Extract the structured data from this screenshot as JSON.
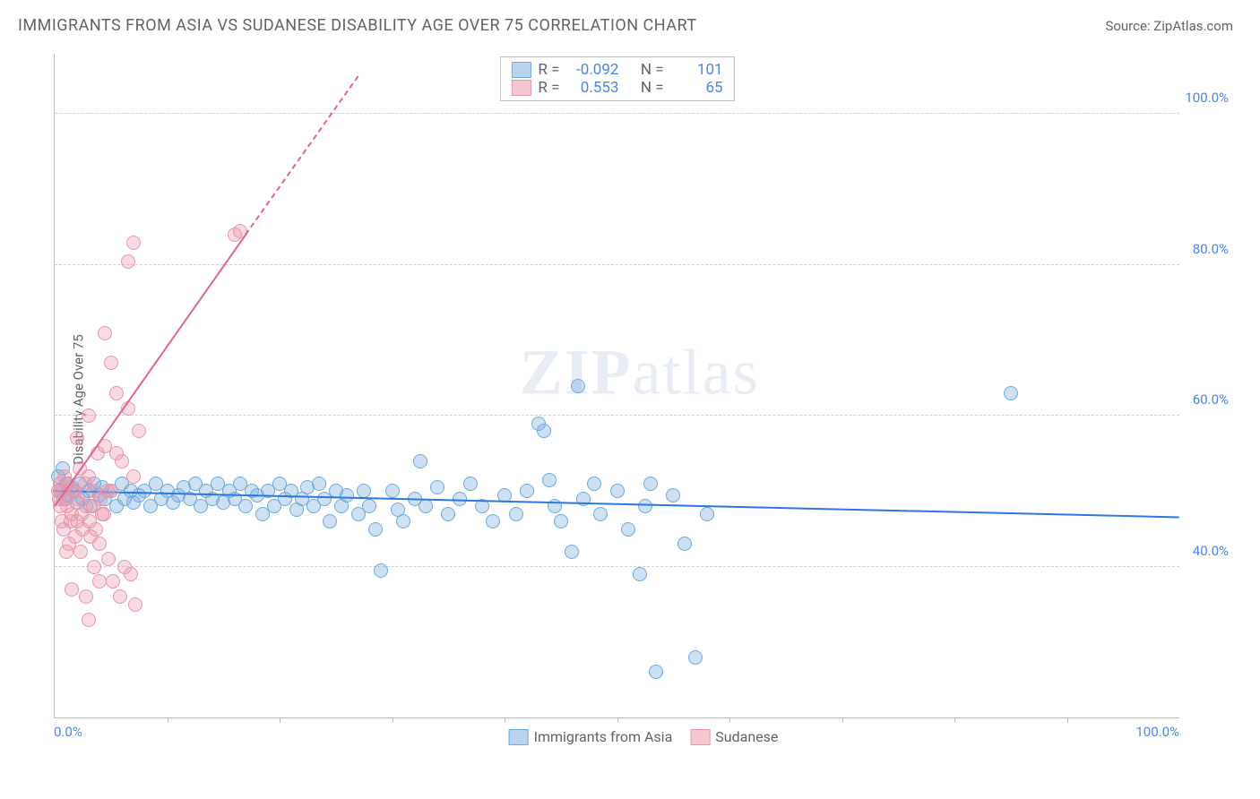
{
  "title": "IMMIGRANTS FROM ASIA VS SUDANESE DISABILITY AGE OVER 75 CORRELATION CHART",
  "source_label": "Source:",
  "source_name": "ZipAtlas.com",
  "watermark": {
    "part1": "ZIP",
    "part2": "atlas"
  },
  "chart": {
    "type": "scatter",
    "background_color": "#ffffff",
    "grid_color": "#d0d0d0",
    "axis_color": "#bdbdbd",
    "text_color": "#5f6368",
    "value_color": "#4a86e8",
    "ylabel": "Disability Age Over 75",
    "xlim": [
      0,
      100
    ],
    "ylim": [
      20,
      108
    ],
    "ytick_values": [
      40,
      60,
      80,
      100
    ],
    "ytick_labels": [
      "40.0%",
      "60.0%",
      "80.0%",
      "100.0%"
    ],
    "xtick_values": [
      10,
      20,
      30,
      40,
      50,
      60,
      70,
      80,
      90
    ],
    "xaxis_labels": [
      "0.0%",
      "100.0%"
    ],
    "marker_radius": 8,
    "marker_border_width": 1,
    "legend_top": [
      {
        "swatch_fill": "#b8d4f1",
        "swatch_border": "#6fa8dc",
        "r_label": "R =",
        "r_value": "-0.092",
        "n_label": "N =",
        "n_value": "101"
      },
      {
        "swatch_fill": "#f4c7d1",
        "swatch_border": "#e895ab",
        "r_label": "R =",
        "r_value": "0.553",
        "n_label": "N =",
        "n_value": "65"
      }
    ],
    "legend_bottom": [
      {
        "swatch_fill": "#b8d4f1",
        "swatch_border": "#6fa8dc",
        "label": "Immigrants from Asia"
      },
      {
        "swatch_fill": "#f4c7d1",
        "swatch_border": "#e895ab",
        "label": "Sudanese"
      }
    ],
    "series": [
      {
        "name": "Immigrants from Asia",
        "fill": "rgba(111,168,220,0.35)",
        "border": "#6fa8dc",
        "trend_color": "#2b78e4",
        "trend": {
          "x1": 0,
          "y1": 50,
          "x2": 100,
          "y2": 46.5
        },
        "points": [
          [
            0.5,
            50
          ],
          [
            0.8,
            49
          ],
          [
            1,
            51
          ],
          [
            1.2,
            49.5
          ],
          [
            1.5,
            50.5
          ],
          [
            2,
            48.5
          ],
          [
            2.2,
            51
          ],
          [
            2.5,
            49
          ],
          [
            3,
            50
          ],
          [
            3.2,
            48
          ],
          [
            3.5,
            51
          ],
          [
            4,
            49.5
          ],
          [
            4.2,
            50.5
          ],
          [
            4.5,
            49
          ],
          [
            5,
            50
          ],
          [
            5.5,
            48
          ],
          [
            6,
            51
          ],
          [
            6.2,
            49
          ],
          [
            6.8,
            50
          ],
          [
            7,
            48.5
          ],
          [
            7.5,
            49.5
          ],
          [
            8,
            50
          ],
          [
            8.5,
            48
          ],
          [
            9,
            51
          ],
          [
            9.5,
            49
          ],
          [
            10,
            50
          ],
          [
            10.5,
            48.5
          ],
          [
            11,
            49.5
          ],
          [
            11.5,
            50.5
          ],
          [
            12,
            49
          ],
          [
            12.5,
            51
          ],
          [
            13,
            48
          ],
          [
            13.5,
            50
          ],
          [
            14,
            49
          ],
          [
            14.5,
            51
          ],
          [
            15,
            48.5
          ],
          [
            15.5,
            50
          ],
          [
            16,
            49
          ],
          [
            16.5,
            51
          ],
          [
            17,
            48
          ],
          [
            17.5,
            50
          ],
          [
            18,
            49.5
          ],
          [
            18.5,
            47
          ],
          [
            19,
            50
          ],
          [
            19.5,
            48
          ],
          [
            20,
            51
          ],
          [
            20.5,
            49
          ],
          [
            21,
            50
          ],
          [
            21.5,
            47.5
          ],
          [
            22,
            49
          ],
          [
            22.5,
            50.5
          ],
          [
            23,
            48
          ],
          [
            23.5,
            51
          ],
          [
            24,
            49
          ],
          [
            24.5,
            46
          ],
          [
            25,
            50
          ],
          [
            25.5,
            48
          ],
          [
            26,
            49.5
          ],
          [
            27,
            47
          ],
          [
            27.5,
            50
          ],
          [
            28,
            48
          ],
          [
            28.5,
            45
          ],
          [
            29,
            39.5
          ],
          [
            30,
            50
          ],
          [
            30.5,
            47.5
          ],
          [
            31,
            46
          ],
          [
            32,
            49
          ],
          [
            32.5,
            54
          ],
          [
            33,
            48
          ],
          [
            34,
            50.5
          ],
          [
            35,
            47
          ],
          [
            36,
            49
          ],
          [
            37,
            51
          ],
          [
            38,
            48
          ],
          [
            39,
            46
          ],
          [
            40,
            49.5
          ],
          [
            41,
            47
          ],
          [
            42,
            50
          ],
          [
            43,
            59
          ],
          [
            43.5,
            58
          ],
          [
            44,
            51.5
          ],
          [
            44.5,
            48
          ],
          [
            45,
            46
          ],
          [
            46,
            42
          ],
          [
            46.5,
            64
          ],
          [
            47,
            49
          ],
          [
            48,
            51
          ],
          [
            48.5,
            47
          ],
          [
            50,
            50
          ],
          [
            51,
            45
          ],
          [
            52,
            39
          ],
          [
            52.5,
            48
          ],
          [
            53,
            51
          ],
          [
            53.5,
            26
          ],
          [
            55,
            49.5
          ],
          [
            56,
            43
          ],
          [
            57,
            28
          ],
          [
            58,
            47
          ],
          [
            85,
            63
          ],
          [
            0.3,
            52
          ],
          [
            0.7,
            53
          ]
        ]
      },
      {
        "name": "Sudanese",
        "fill": "rgba(232,149,171,0.35)",
        "border": "#e895ab",
        "trend_color": "#e06687",
        "trend": {
          "x1": 0,
          "y1": 48,
          "x2": 17,
          "y2": 84
        },
        "trend_dash": {
          "x1": 17,
          "y1": 84,
          "x2": 27,
          "y2": 105
        },
        "points": [
          [
            0.5,
            48
          ],
          [
            0.7,
            50
          ],
          [
            1,
            49
          ],
          [
            1.2,
            51
          ],
          [
            1.5,
            47
          ],
          [
            1.8,
            50
          ],
          [
            2,
            46
          ],
          [
            2.2,
            53
          ],
          [
            2.5,
            45
          ],
          [
            2.8,
            48
          ],
          [
            3,
            52
          ],
          [
            3.2,
            44
          ],
          [
            3.5,
            50
          ],
          [
            3.8,
            55
          ],
          [
            4,
            43
          ],
          [
            4.2,
            47
          ],
          [
            4.5,
            56
          ],
          [
            4.8,
            41
          ],
          [
            5,
            50
          ],
          [
            5.2,
            38
          ],
          [
            5.5,
            55
          ],
          [
            5.8,
            36
          ],
          [
            6,
            54
          ],
          [
            6.2,
            40
          ],
          [
            6.5,
            61
          ],
          [
            6.8,
            39
          ],
          [
            7,
            52
          ],
          [
            7.2,
            35
          ],
          [
            7.5,
            58
          ],
          [
            4.5,
            71
          ],
          [
            5,
            67
          ],
          [
            5.5,
            63
          ],
          [
            3,
            60
          ],
          [
            2,
            57
          ],
          [
            7,
            83
          ],
          [
            6.5,
            80.5
          ],
          [
            16,
            84
          ],
          [
            16.5,
            84.5
          ],
          [
            1.5,
            37
          ],
          [
            2.8,
            36
          ],
          [
            3,
            33
          ],
          [
            1,
            42
          ],
          [
            1.3,
            43
          ],
          [
            0.8,
            45
          ],
          [
            0.6,
            46
          ],
          [
            1.8,
            44
          ],
          [
            2.3,
            42
          ],
          [
            3.5,
            40
          ],
          [
            4,
            38
          ],
          [
            0.4,
            49
          ],
          [
            0.3,
            50
          ],
          [
            0.5,
            51
          ],
          [
            0.9,
            52
          ],
          [
            1.1,
            48
          ],
          [
            1.4,
            46
          ],
          [
            1.7,
            50
          ],
          [
            2.1,
            49
          ],
          [
            2.4,
            47
          ],
          [
            2.7,
            51
          ],
          [
            3.1,
            46
          ],
          [
            3.4,
            48
          ],
          [
            3.7,
            45
          ],
          [
            4.1,
            49
          ],
          [
            4.4,
            47
          ],
          [
            4.7,
            50
          ]
        ]
      }
    ]
  }
}
